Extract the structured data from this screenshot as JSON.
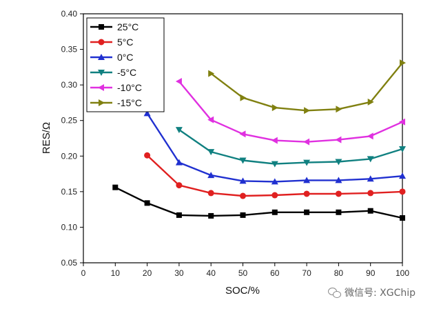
{
  "chart_data": {
    "type": "line",
    "xlabel": "SOC/%",
    "ylabel": "RES/Ω",
    "xlim": [
      0,
      100
    ],
    "ylim": [
      0.05,
      0.4
    ],
    "x_ticks": [
      "0",
      "10",
      "20",
      "30",
      "40",
      "50",
      "60",
      "70",
      "80",
      "90",
      "100"
    ],
    "y_ticks": [
      "0.05",
      "0.10",
      "0.15",
      "0.20",
      "0.25",
      "0.30",
      "0.35",
      "0.40"
    ],
    "legend_position": "top-left",
    "grid": false,
    "series": [
      {
        "name": "25°C",
        "color": "#000000",
        "marker": "square",
        "x": [
          10,
          20,
          30,
          40,
          50,
          60,
          70,
          80,
          90,
          100
        ],
        "y": [
          0.156,
          0.134,
          0.117,
          0.116,
          0.117,
          0.121,
          0.121,
          0.121,
          0.123,
          0.113
        ]
      },
      {
        "name": "5°C",
        "color": "#e02020",
        "marker": "circle",
        "x": [
          20,
          30,
          40,
          50,
          60,
          70,
          80,
          90,
          100
        ],
        "y": [
          0.201,
          0.159,
          0.148,
          0.144,
          0.145,
          0.147,
          0.147,
          0.148,
          0.15
        ]
      },
      {
        "name": "0°C",
        "color": "#2030d0",
        "marker": "triangle-up",
        "x": [
          20,
          30,
          40,
          50,
          60,
          70,
          80,
          90,
          100
        ],
        "y": [
          0.26,
          0.191,
          0.173,
          0.165,
          0.164,
          0.166,
          0.166,
          0.168,
          0.172
        ]
      },
      {
        "name": "-5°C",
        "color": "#108080",
        "marker": "triangle-down",
        "x": [
          30,
          40,
          50,
          60,
          70,
          80,
          90,
          100
        ],
        "y": [
          0.237,
          0.206,
          0.194,
          0.189,
          0.191,
          0.192,
          0.196,
          0.21
        ]
      },
      {
        "name": "-10°C",
        "color": "#e030e0",
        "marker": "triangle-left",
        "x": [
          30,
          40,
          50,
          60,
          70,
          80,
          90,
          100
        ],
        "y": [
          0.305,
          0.251,
          0.231,
          0.222,
          0.22,
          0.223,
          0.228,
          0.248
        ]
      },
      {
        "name": "-15°C",
        "color": "#808010",
        "marker": "triangle-right",
        "x": [
          40,
          50,
          60,
          70,
          80,
          90,
          100
        ],
        "y": [
          0.316,
          0.282,
          0.268,
          0.264,
          0.266,
          0.276,
          0.331
        ]
      }
    ]
  },
  "watermark": {
    "icon": "wechat-icon",
    "text": "微信号: XGChip"
  }
}
